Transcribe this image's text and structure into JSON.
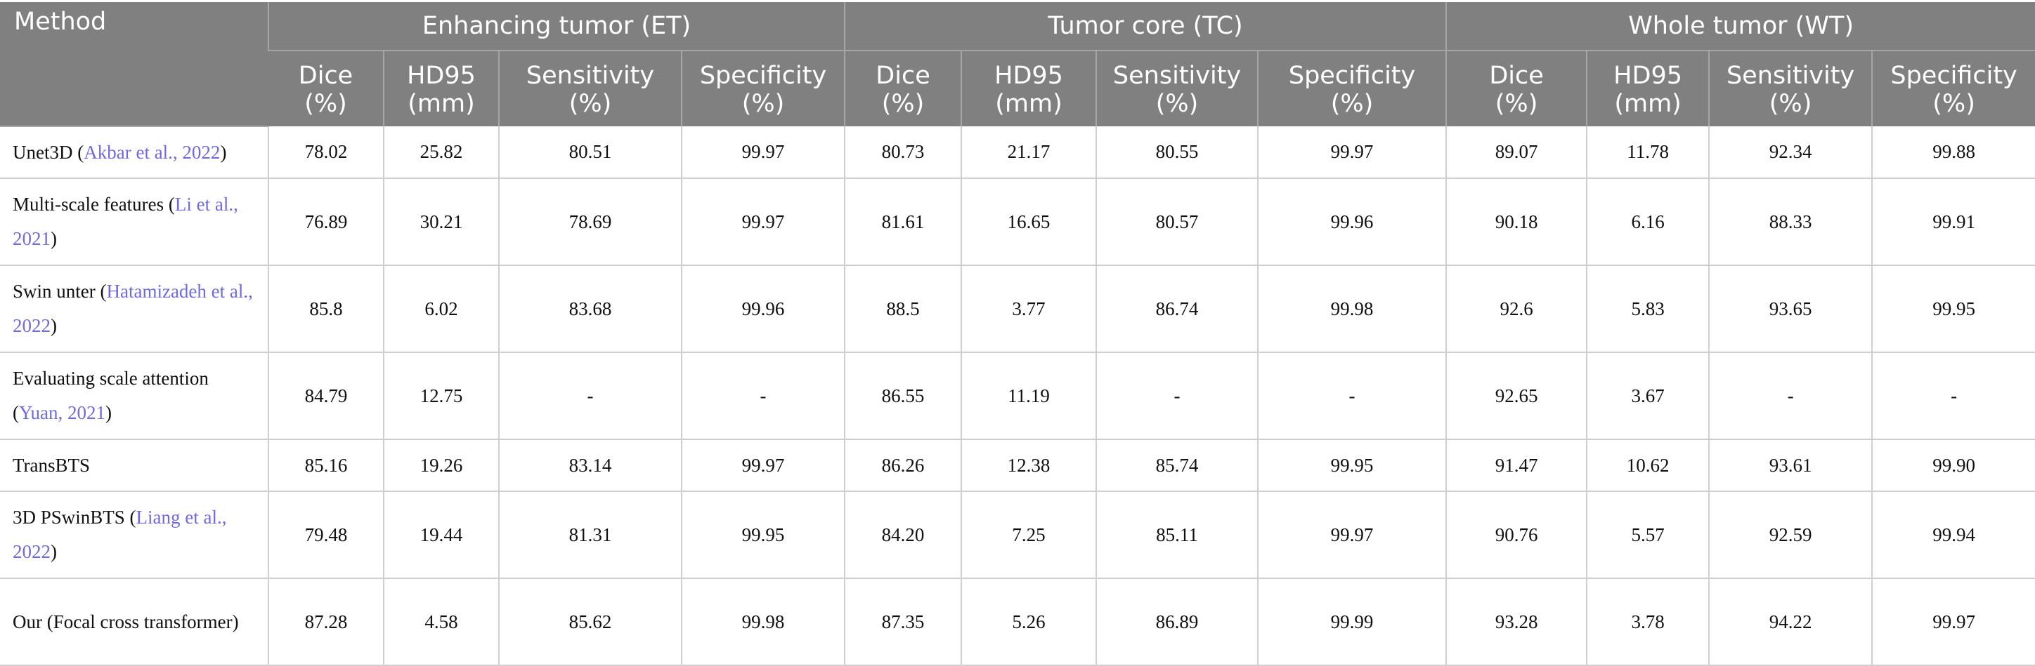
{
  "header": {
    "method": "Method",
    "groups": [
      "Enhancing tumor (ET)",
      "Tumor core (TC)",
      "Whole tumor (WT)"
    ],
    "metrics": [
      {
        "name": "Dice",
        "unit": "(%)"
      },
      {
        "name": "HD95",
        "unit": "(mm)"
      },
      {
        "name": "Sensitivity",
        "unit": "(%)"
      },
      {
        "name": "Specificity",
        "unit": "(%)"
      },
      {
        "name": "Dice",
        "unit": "(%)"
      },
      {
        "name": "HD95",
        "unit": "(mm)"
      },
      {
        "name": "Sensitivity",
        "unit": "(%)"
      },
      {
        "name": "Specificity",
        "unit": "(%)"
      },
      {
        "name": "Dice",
        "unit": "(%)"
      },
      {
        "name": "HD95",
        "unit": "(mm)"
      },
      {
        "name": "Sensitivity",
        "unit": "(%)"
      },
      {
        "name": "Specificity",
        "unit": "(%)"
      }
    ]
  },
  "rows": [
    {
      "method": {
        "pre": "Unet3D (",
        "cite": "Akbar et al., 2022",
        "post": ")"
      },
      "values": [
        "78.02",
        "25.82",
        "80.51",
        "99.97",
        "80.73",
        "21.17",
        "80.55",
        "99.97",
        "89.07",
        "11.78",
        "92.34",
        "99.88"
      ]
    },
    {
      "method": {
        "pre": "Multi-scale features (",
        "cite": "Li et al., 2021",
        "post": ")"
      },
      "values": [
        "76.89",
        "30.21",
        "78.69",
        "99.97",
        "81.61",
        "16.65",
        "80.57",
        "99.96",
        "90.18",
        "6.16",
        "88.33",
        "99.91"
      ]
    },
    {
      "method": {
        "pre": "Swin unter (",
        "cite": "Hatamizadeh et al., 2022",
        "post": ")"
      },
      "values": [
        "85.8",
        "6.02",
        "83.68",
        "99.96",
        "88.5",
        "3.77",
        "86.74",
        "99.98",
        "92.6",
        "5.83",
        "93.65",
        "99.95"
      ]
    },
    {
      "method": {
        "pre": "Evaluating scale attention (",
        "cite": "Yuan, 2021",
        "post": ")"
      },
      "values": [
        "84.79",
        "12.75",
        "-",
        "-",
        "86.55",
        "11.19",
        "-",
        "-",
        "92.65",
        "3.67",
        "-",
        "-"
      ]
    },
    {
      "method": {
        "pre": "TransBTS",
        "cite": "",
        "post": ""
      },
      "values": [
        "85.16",
        "19.26",
        "83.14",
        "99.97",
        "86.26",
        "12.38",
        "85.74",
        "99.95",
        "91.47",
        "10.62",
        "93.61",
        "99.90"
      ]
    },
    {
      "method": {
        "pre": "3D PSwinBTS (",
        "cite": "Liang et al., 2022",
        "post": ")"
      },
      "values": [
        "79.48",
        "19.44",
        "81.31",
        "99.95",
        "84.20",
        "7.25",
        "85.11",
        "99.97",
        "90.76",
        "5.57",
        "92.59",
        "99.94"
      ]
    },
    {
      "method": {
        "pre": "Our (Focal cross transformer)",
        "cite": "",
        "post": ""
      },
      "values": [
        "87.28",
        "4.58",
        "85.62",
        "99.98",
        "87.35",
        "5.26",
        "86.89",
        "99.99",
        "93.28",
        "3.78",
        "94.22",
        "99.97"
      ]
    }
  ],
  "colors": {
    "header_bg": "#808080",
    "citation": "#6f6ae3",
    "grid": "#cfcfcf"
  }
}
